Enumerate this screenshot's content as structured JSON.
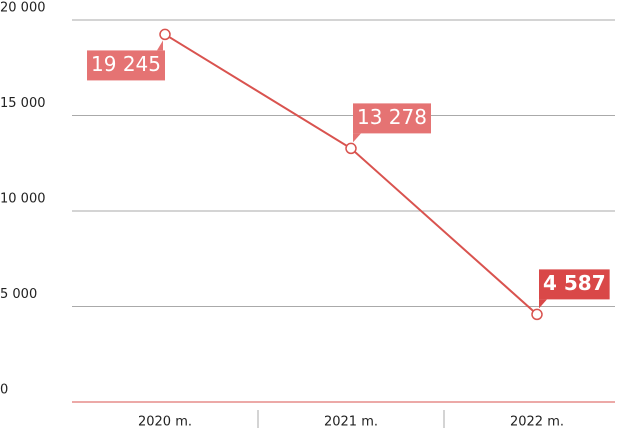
{
  "chart_data": {
    "type": "line",
    "categories": [
      "2020 m.",
      "2021 m.",
      "2022 m."
    ],
    "series": [
      {
        "name": null,
        "color": "#d9534f",
        "values": [
          19245,
          13278,
          4587
        ],
        "value_labels": [
          "19 245",
          "13 278",
          "4 587"
        ]
      }
    ],
    "ylim": [
      0,
      20000
    ],
    "yticks": [
      0,
      {
        "value": 5000,
        "label": "5 000"
      },
      {
        "value": 10000,
        "label": "10 000"
      },
      {
        "value": 15000,
        "label": "15 000"
      },
      {
        "value": 20000,
        "label": "20 000"
      }
    ],
    "grid": true
  }
}
